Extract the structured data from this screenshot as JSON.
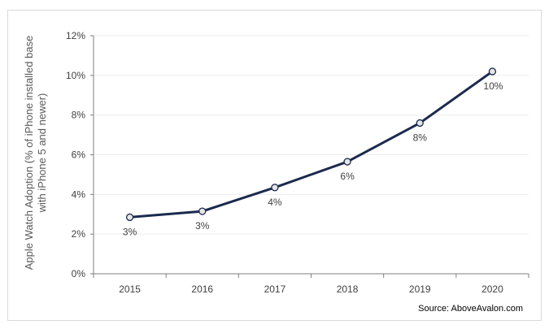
{
  "chart_data": {
    "type": "line",
    "title": "",
    "xlabel": "",
    "ylabel_lines": [
      "Apple Watch Adoption (% of iPhone installed base",
      "with iPhone 5 and newer)"
    ],
    "categories": [
      "2015",
      "2016",
      "2017",
      "2018",
      "2019",
      "2020"
    ],
    "series": [
      {
        "values": [
          2.85,
          3.15,
          4.35,
          5.65,
          7.6,
          10.2
        ],
        "data_labels": [
          "3%",
          "3%",
          "4%",
          "6%",
          "8%",
          "10%"
        ]
      }
    ],
    "ylim": [
      0,
      12
    ],
    "yticks": [
      0,
      2,
      4,
      6,
      8,
      10,
      12
    ],
    "ytick_labels": [
      "0%",
      "2%",
      "4%",
      "6%",
      "8%",
      "10%",
      "12%"
    ],
    "grid": true,
    "line_color": "#1b2a4e",
    "marker_fill": "#e6e6e6"
  },
  "source": "Source: AboveAvalon.com"
}
